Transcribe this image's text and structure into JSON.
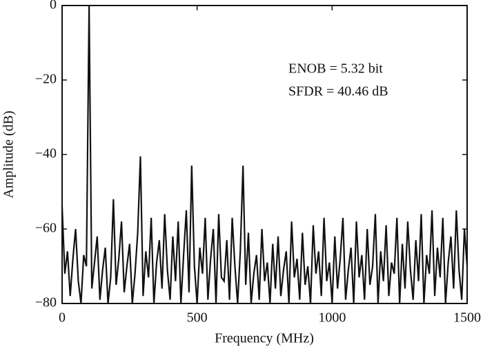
{
  "chart_data": {
    "type": "line",
    "xlabel": "Frequency (MHz)",
    "ylabel": "Amplitude (dB)",
    "annotations": [
      "ENOB = 5.32 bit",
      "SFDR = 40.46 dB"
    ],
    "xlim": [
      0,
      1500
    ],
    "xticks": [
      0,
      500,
      1000,
      1500
    ],
    "ylim": [
      -80,
      0
    ],
    "yticks": [
      0,
      {
        "value": -20,
        "label": "−20"
      },
      {
        "value": -40,
        "label": "−40"
      },
      {
        "value": -60,
        "label": "−60"
      },
      {
        "value": -80,
        "label": "−80"
      }
    ],
    "grid": false,
    "x": [
      0,
      10,
      20,
      30,
      40,
      50,
      60,
      70,
      80,
      90,
      100,
      110,
      120,
      130,
      140,
      150,
      160,
      170,
      180,
      190,
      200,
      210,
      220,
      230,
      240,
      250,
      260,
      270,
      280,
      290,
      300,
      310,
      320,
      330,
      340,
      350,
      360,
      370,
      380,
      390,
      400,
      410,
      420,
      430,
      440,
      450,
      460,
      470,
      480,
      490,
      500,
      510,
      520,
      530,
      540,
      550,
      560,
      570,
      580,
      590,
      600,
      610,
      620,
      630,
      640,
      650,
      660,
      670,
      680,
      690,
      700,
      710,
      720,
      730,
      740,
      750,
      760,
      770,
      780,
      790,
      800,
      810,
      820,
      830,
      840,
      850,
      860,
      870,
      880,
      890,
      900,
      910,
      920,
      930,
      940,
      950,
      960,
      970,
      980,
      990,
      1000,
      1010,
      1020,
      1030,
      1040,
      1050,
      1060,
      1070,
      1080,
      1090,
      1100,
      1110,
      1120,
      1130,
      1140,
      1150,
      1160,
      1170,
      1180,
      1190,
      1200,
      1210,
      1220,
      1230,
      1240,
      1250,
      1260,
      1270,
      1280,
      1290,
      1300,
      1310,
      1320,
      1330,
      1340,
      1350,
      1360,
      1370,
      1380,
      1390,
      1400,
      1410,
      1420,
      1430,
      1440,
      1450,
      1460,
      1470,
      1480,
      1490,
      1500
    ],
    "series": [
      {
        "color": "#111111",
        "values": [
          -54,
          -72,
          -66,
          -78,
          -68,
          -60,
          -74,
          -80,
          -67,
          -70,
          0,
          -76,
          -69,
          -62,
          -79,
          -71,
          -65,
          -80,
          -73,
          -52,
          -75,
          -68,
          -58,
          -77,
          -70,
          -64,
          -80,
          -72,
          -61,
          -40.5,
          -78,
          -66,
          -73,
          -57,
          -80,
          -69,
          -63,
          -76,
          -56,
          -71,
          -79,
          -62,
          -74,
          -58,
          -80,
          -67,
          -55,
          -77,
          -43,
          -70,
          -80,
          -65,
          -72,
          -57,
          -79,
          -68,
          -60,
          -80,
          -56,
          -73,
          -74,
          -63,
          -79,
          -57,
          -70,
          -80,
          -66,
          -43,
          -75,
          -61,
          -80,
          -72,
          -67,
          -79,
          -60,
          -74,
          -69,
          -80,
          -64,
          -76,
          -62,
          -78,
          -71,
          -66,
          -80,
          -58,
          -73,
          -68,
          -79,
          -61,
          -75,
          -70,
          -80,
          -59,
          -72,
          -66,
          -78,
          -57,
          -74,
          -69,
          -80,
          -62,
          -76,
          -68,
          -57,
          -79,
          -71,
          -65,
          -80,
          -58,
          -73,
          -67,
          -79,
          -60,
          -75,
          -70,
          -56,
          -80,
          -66,
          -74,
          -59,
          -78,
          -69,
          -72,
          -57,
          -80,
          -64,
          -76,
          -58,
          -71,
          -79,
          -63,
          -74,
          -56,
          -80,
          -67,
          -72,
          -55,
          -78,
          -65,
          -73,
          -57,
          -80,
          -69,
          -62,
          -76,
          -55,
          -71,
          -79,
          -60,
          -70
        ]
      }
    ]
  }
}
